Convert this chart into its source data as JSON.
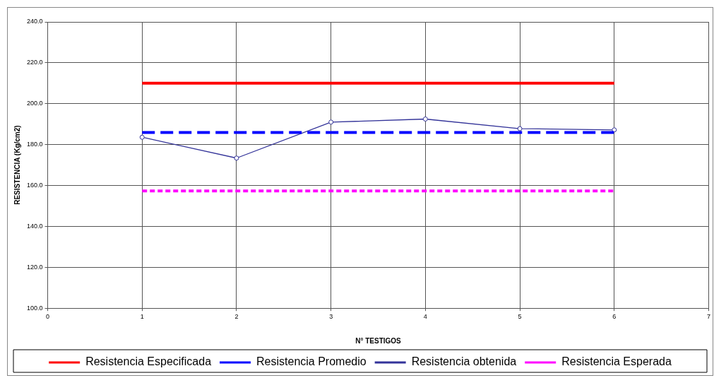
{
  "chart_data": {
    "type": "line",
    "xlabel": "N° TESTIGOS",
    "ylabel": "RESISTENCIA (Kg/cm2)",
    "x": [
      1,
      2,
      3,
      4,
      5,
      6
    ],
    "series": [
      {
        "name": "Resistencia Especificada",
        "color": "#ff0000",
        "values": [
          210,
          210,
          210,
          210,
          210,
          210
        ],
        "line_style": "solid",
        "marker": "none"
      },
      {
        "name": "Resistencia Promedio",
        "color": "#0000ff",
        "values": [
          185.9,
          185.9,
          185.9,
          185.9,
          185.9,
          185.9
        ],
        "line_style": "dashed",
        "marker": "none"
      },
      {
        "name": "Resistencia obtenida",
        "color": "#333399",
        "values": [
          183.6,
          173.4,
          191.0,
          192.5,
          187.8,
          187.2
        ],
        "line_style": "solid",
        "marker": "circle"
      },
      {
        "name": "Resistencia Esperada",
        "color": "#ff00ff",
        "values": [
          157.3,
          157.3,
          157.3,
          157.3,
          157.3,
          157.3
        ],
        "line_style": "dotted",
        "marker": "none"
      }
    ],
    "xlim": [
      0,
      7
    ],
    "xticks": [
      0,
      1,
      2,
      3,
      4,
      5,
      6,
      7
    ],
    "ylim": [
      100,
      240
    ],
    "yticks": [
      {
        "value": 100,
        "label": "100.0"
      },
      {
        "value": 120,
        "label": "120.0"
      },
      {
        "value": 140,
        "label": "140.0"
      },
      {
        "value": 160,
        "label": "160.0"
      },
      {
        "value": 180,
        "label": "180.0"
      },
      {
        "value": 200,
        "label": "200.0"
      },
      {
        "value": 220,
        "label": "220.0"
      },
      {
        "value": 240,
        "label": "240.0"
      }
    ],
    "grid": true,
    "legend": "bottom"
  }
}
